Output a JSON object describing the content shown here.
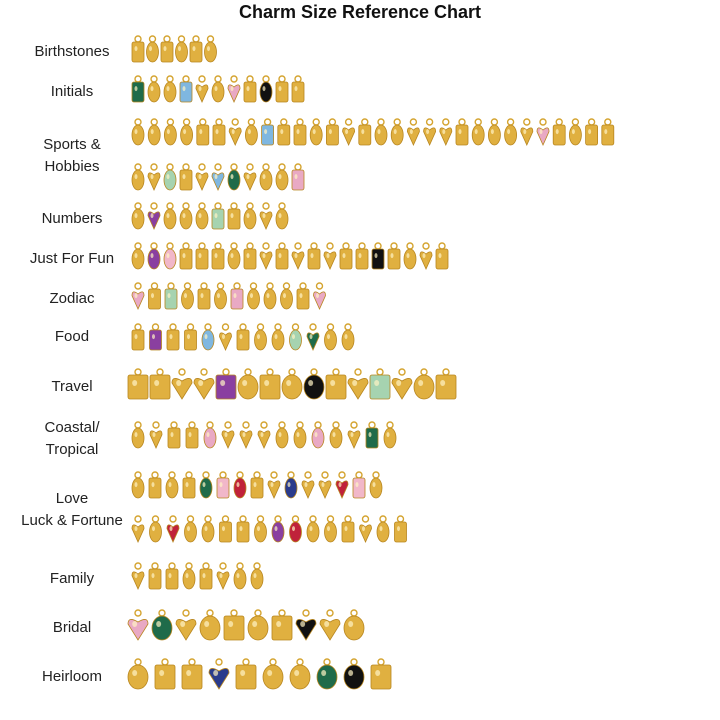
{
  "header": {
    "title": "Charm Size Reference Chart"
  },
  "rows": [
    {
      "label": [
        "Birthstones"
      ]
    },
    {
      "label": [
        "Initials"
      ]
    },
    {
      "label": [
        "Sports &",
        "Hobbies"
      ]
    },
    {
      "label": [
        "Numbers"
      ]
    },
    {
      "label": [
        "Just For Fun"
      ]
    },
    {
      "label": [
        "Zodiac"
      ]
    },
    {
      "label": [
        "Food"
      ]
    },
    {
      "label": [
        "Travel"
      ]
    },
    {
      "label": [
        "Coastal/",
        "Tropical"
      ]
    },
    {
      "label": [
        "Love"
      ]
    },
    {
      "label": [
        "Luck & Fortune"
      ]
    },
    {
      "label": [
        "Family"
      ]
    },
    {
      "label": [
        "Bridal"
      ]
    },
    {
      "label": [
        "Heirloom"
      ]
    }
  ]
}
